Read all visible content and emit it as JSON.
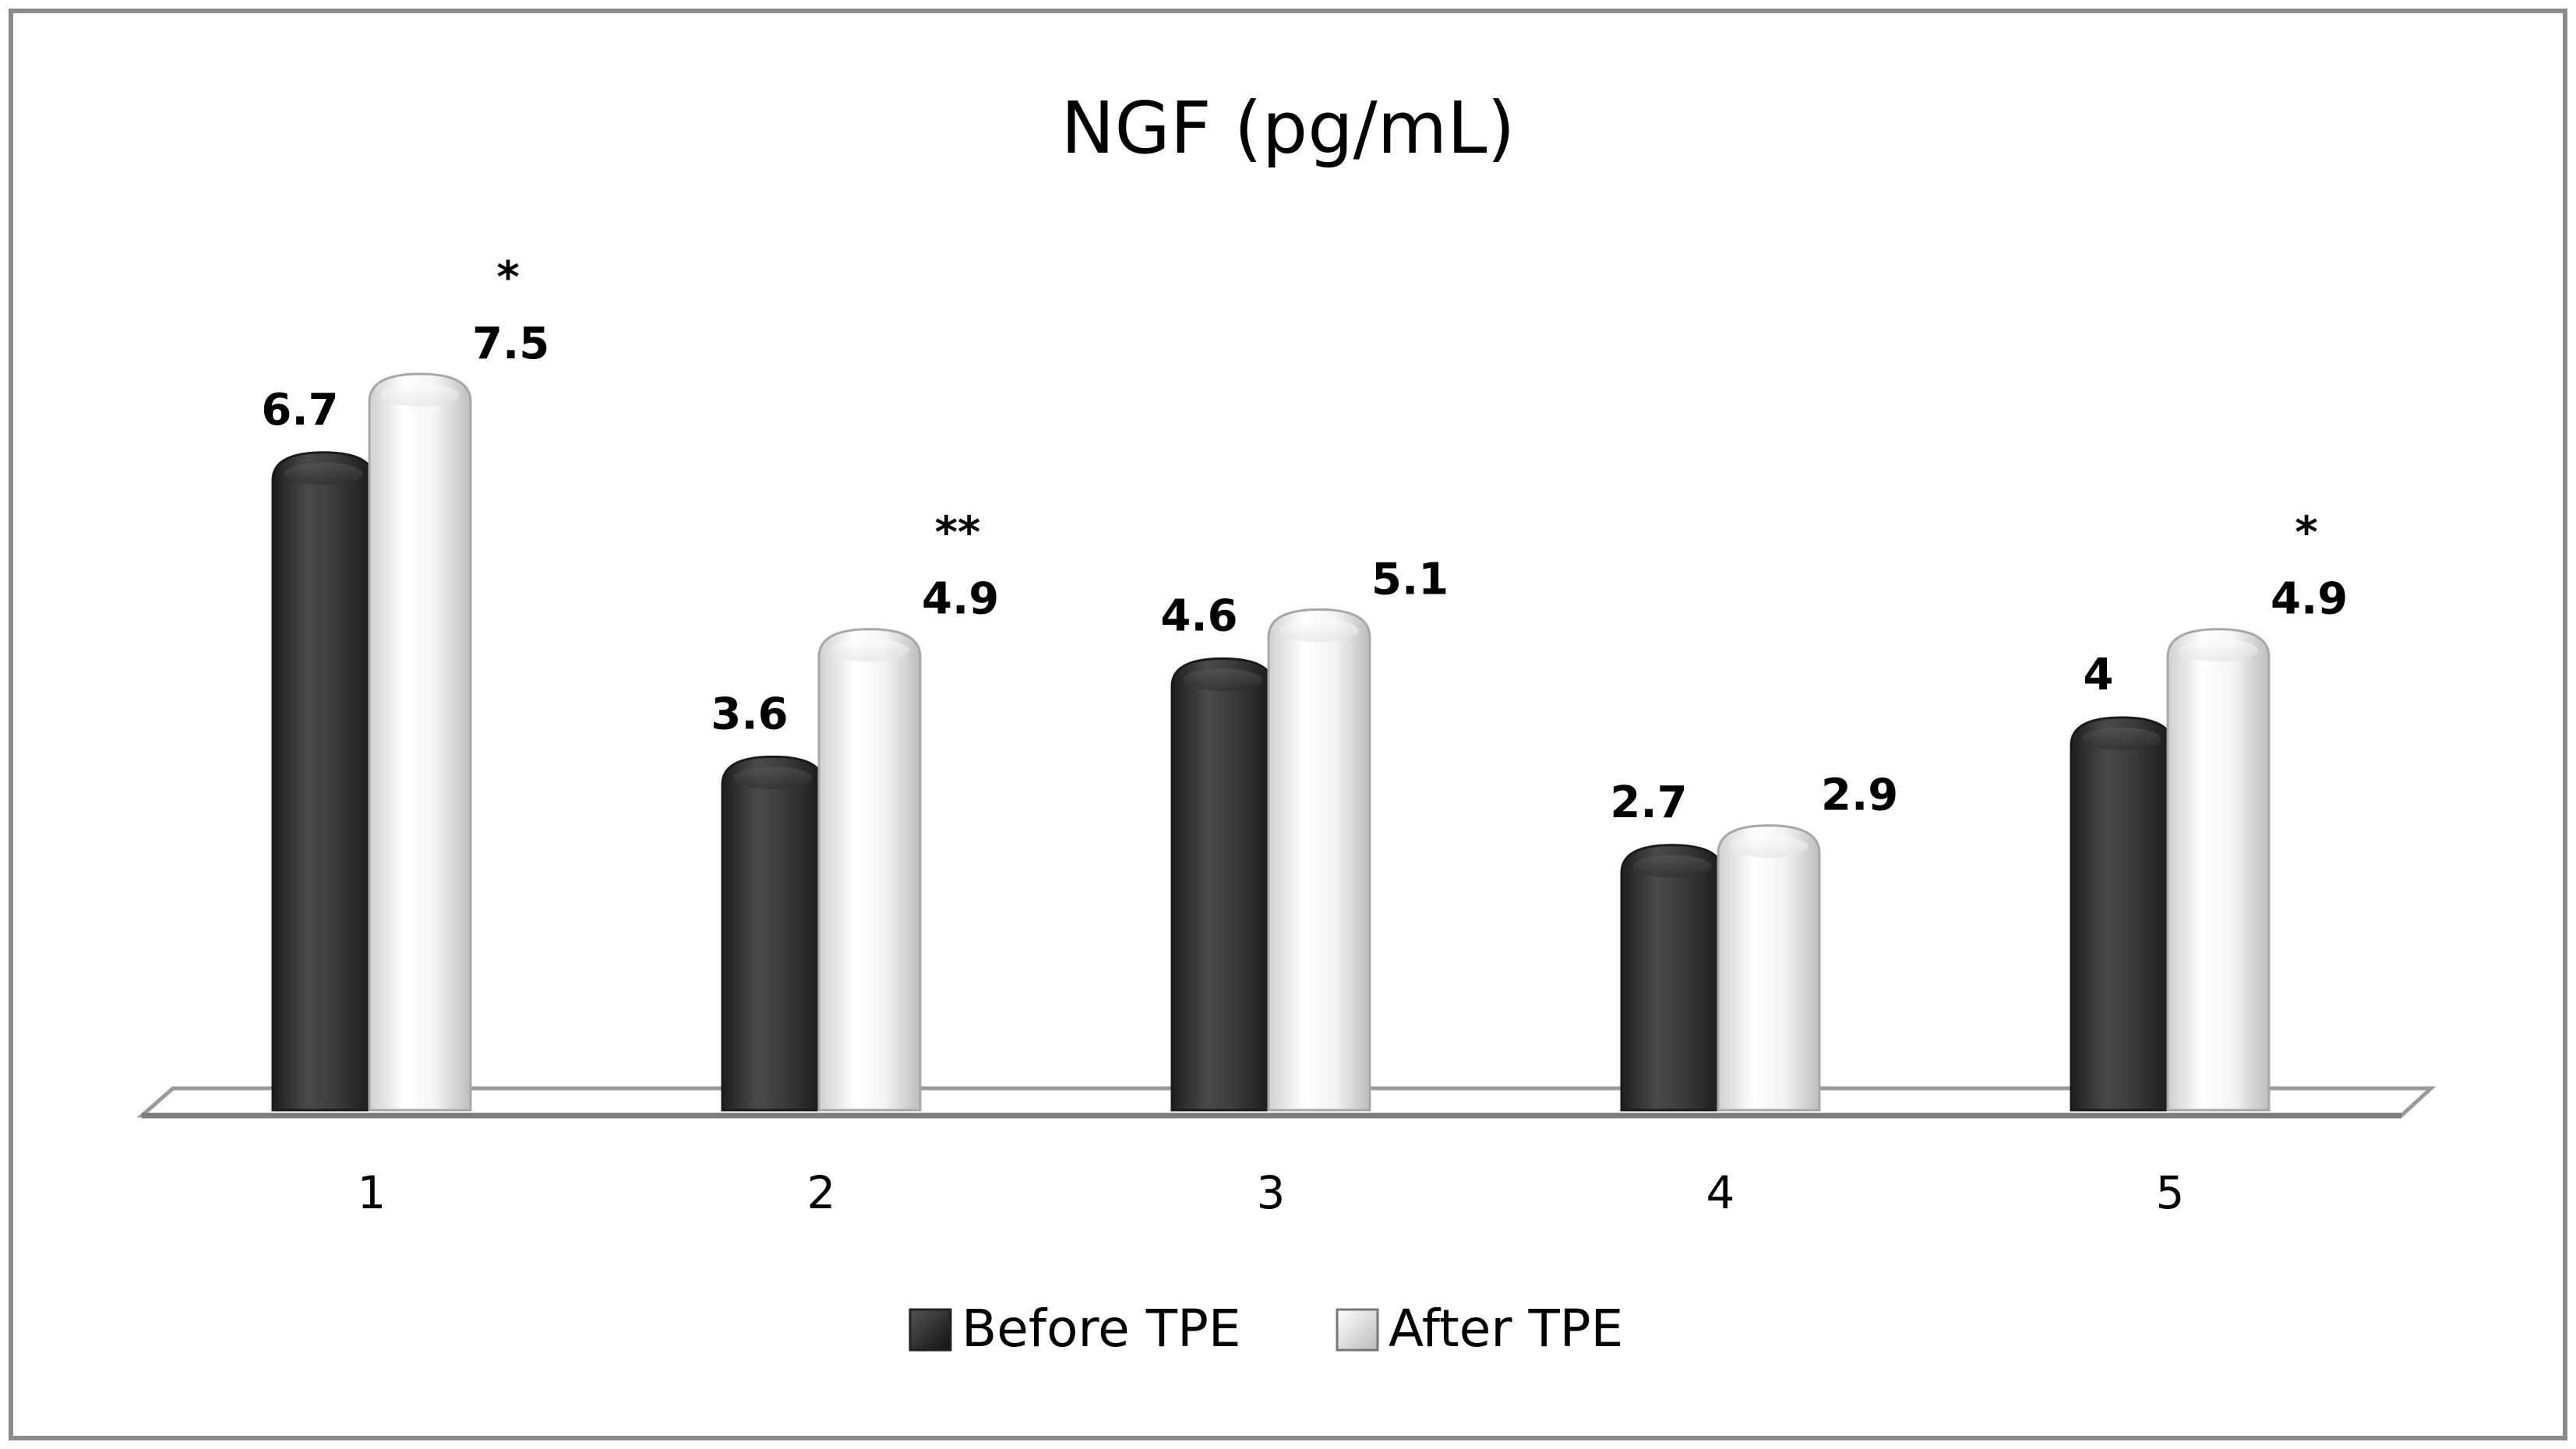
{
  "chart_data": {
    "type": "bar",
    "title": "NGF (pg/mL)",
    "categories": [
      "1",
      "2",
      "3",
      "4",
      "5"
    ],
    "series": [
      {
        "name": "Before TPE",
        "values": [
          6.7,
          3.6,
          4.6,
          2.7,
          4
        ],
        "labels": [
          "6.7",
          "3.6",
          "4.6",
          "2.7",
          "4"
        ],
        "color": "#3a3a3a"
      },
      {
        "name": "After TPE",
        "values": [
          7.5,
          4.9,
          5.1,
          2.9,
          4.9
        ],
        "labels": [
          "7.5",
          "4.9",
          "5.1",
          "2.9",
          "4.9"
        ],
        "color": "#f2f2f2"
      }
    ],
    "annotations": [
      "*",
      "**",
      "",
      "",
      "*"
    ],
    "ylim": [
      0,
      8
    ],
    "xlabel": "",
    "ylabel": "",
    "grid": false,
    "legend_position": "bottom"
  }
}
